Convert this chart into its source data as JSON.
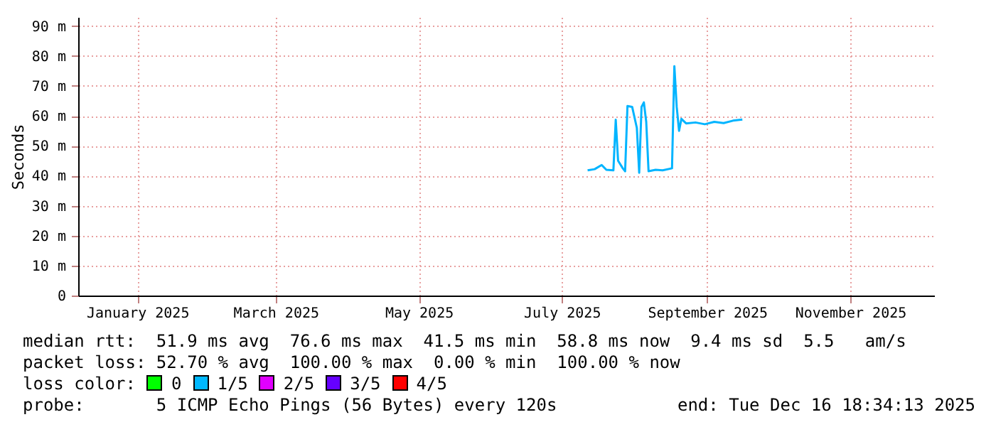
{
  "chart_data": {
    "type": "line",
    "ylabel": "Seconds",
    "x": [
      "2025-07-22",
      "2025-07-25",
      "2025-07-28",
      "2025-07-30",
      "2025-08-02",
      "2025-08-03",
      "2025-08-04",
      "2025-08-06",
      "2025-08-07",
      "2025-08-08",
      "2025-08-10",
      "2025-08-12",
      "2025-08-13",
      "2025-08-14",
      "2025-08-15",
      "2025-08-16",
      "2025-08-17",
      "2025-08-20",
      "2025-08-23",
      "2025-08-27",
      "2025-08-28",
      "2025-08-29",
      "2025-08-30",
      "2025-08-31",
      "2025-09-02",
      "2025-09-06",
      "2025-09-10",
      "2025-09-14",
      "2025-09-18",
      "2025-09-22",
      "2025-09-26"
    ],
    "series": [
      {
        "color": "#00b4ff",
        "values": [
          41.8,
          42.2,
          43.6,
          42.0,
          41.8,
          58.7,
          45.0,
          42.5,
          41.5,
          63.3,
          63.0,
          56.0,
          41.0,
          63.0,
          64.5,
          58.0,
          41.5,
          42.0,
          41.8,
          42.5,
          76.6,
          63.0,
          55.0,
          59.0,
          57.5,
          57.8,
          57.2,
          58.0,
          57.6,
          58.4,
          58.8
        ]
      }
    ],
    "xlim": [
      "2024-12-16T18:34",
      "2025-12-16T18:34"
    ],
    "xticks": [
      {
        "value": "2025-01-11",
        "label": "January 2025"
      },
      {
        "value": "2025-03-11",
        "label": "March 2025"
      },
      {
        "value": "2025-05-11",
        "label": "May 2025"
      },
      {
        "value": "2025-07-11",
        "label": "July 2025"
      },
      {
        "value": "2025-09-11",
        "label": "September 2025"
      },
      {
        "value": "2025-11-11",
        "label": "November 2025"
      }
    ],
    "ylim": [
      0,
      93
    ],
    "yticks": [
      0,
      {
        "value": 10,
        "label": "10 m"
      },
      {
        "value": 20,
        "label": "20 m"
      },
      {
        "value": 30,
        "label": "30 m"
      },
      {
        "value": 40,
        "label": "40 m"
      },
      {
        "value": 50,
        "label": "50 m"
      },
      {
        "value": 60,
        "label": "60 m"
      },
      {
        "value": 70,
        "label": "70 m"
      },
      {
        "value": 80,
        "label": "80 m"
      },
      {
        "value": 90,
        "label": "90 m"
      }
    ],
    "grid": true,
    "annotations": [
      "median rtt:  51.9 ms avg  76.6 ms max  41.5 ms min  58.8 ms now  9.4 ms sd  5.5   am/s",
      "packet loss: 52.70 % avg  100.00 % max  0.00 % min  100.00 % now",
      "loss color:",
      "0",
      "1/5",
      "2/5",
      "3/5",
      "4/5",
      "probe:       5 ICMP Echo Pings (56 Bytes) every 120s",
      "end: Tue Dec 16 18:34:13 2025"
    ]
  }
}
